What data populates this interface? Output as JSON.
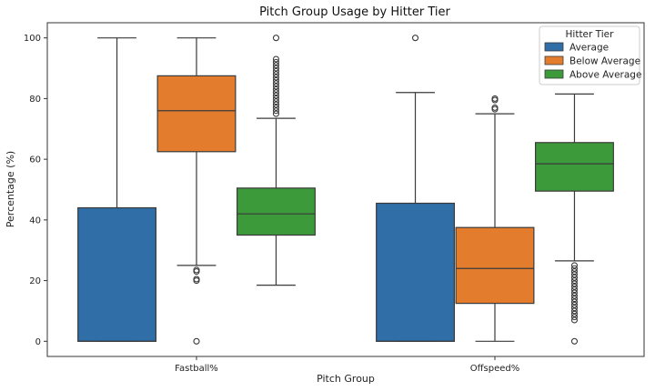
{
  "chart_data": {
    "type": "box",
    "title": "Pitch Group Usage by Hitter Tier",
    "xlabel": "Pitch Group",
    "ylabel": "Percentage (%)",
    "ylim": [
      -5,
      105
    ],
    "yticks": [
      0,
      20,
      40,
      60,
      80,
      100
    ],
    "categories": [
      "Fastball%",
      "Offspeed%"
    ],
    "legend": {
      "title": "Hitter Tier",
      "placement": "top-right"
    },
    "grid": false,
    "series": [
      {
        "name": "Average",
        "color": "#2f6ea6",
        "boxes": [
          {
            "category": "Fastball%",
            "whisker_low": 0,
            "q1": 0,
            "median": 0,
            "q3": 44,
            "whisker_high": 100,
            "outliers": []
          },
          {
            "category": "Offspeed%",
            "whisker_low": 0,
            "q1": 0,
            "median": 0,
            "q3": 45.5,
            "whisker_high": 82,
            "outliers": [
              100
            ]
          }
        ]
      },
      {
        "name": "Below Average",
        "color": "#e37d2d",
        "boxes": [
          {
            "category": "Fastball%",
            "whisker_low": 25,
            "q1": 62.5,
            "median": 76,
            "q3": 87.5,
            "whisker_high": 100,
            "outliers": [
              0,
              20,
              20.5,
              23,
              23.5
            ]
          },
          {
            "category": "Offspeed%",
            "whisker_low": 0,
            "q1": 12.5,
            "median": 24,
            "q3": 37.5,
            "whisker_high": 75,
            "outliers": [
              76.5,
              77,
              79.5,
              80
            ]
          }
        ]
      },
      {
        "name": "Above Average",
        "color": "#3c9a3a",
        "boxes": [
          {
            "category": "Fastball%",
            "whisker_low": 18.5,
            "q1": 35,
            "median": 42,
            "q3": 50.5,
            "whisker_high": 73.5,
            "outliers": [
              75,
              76,
              77,
              78,
              79,
              80,
              81,
              82,
              83,
              84,
              85,
              86,
              87,
              88,
              89,
              90,
              91,
              92,
              93,
              100
            ]
          },
          {
            "category": "Offspeed%",
            "whisker_low": 26.5,
            "q1": 49.5,
            "median": 58.5,
            "q3": 65.5,
            "whisker_high": 81.5,
            "outliers": [
              0,
              7,
              8,
              9,
              10,
              11,
              12,
              13,
              14,
              15,
              16,
              17,
              18,
              19,
              20,
              21,
              22,
              23,
              24,
              25
            ]
          }
        ]
      }
    ]
  }
}
